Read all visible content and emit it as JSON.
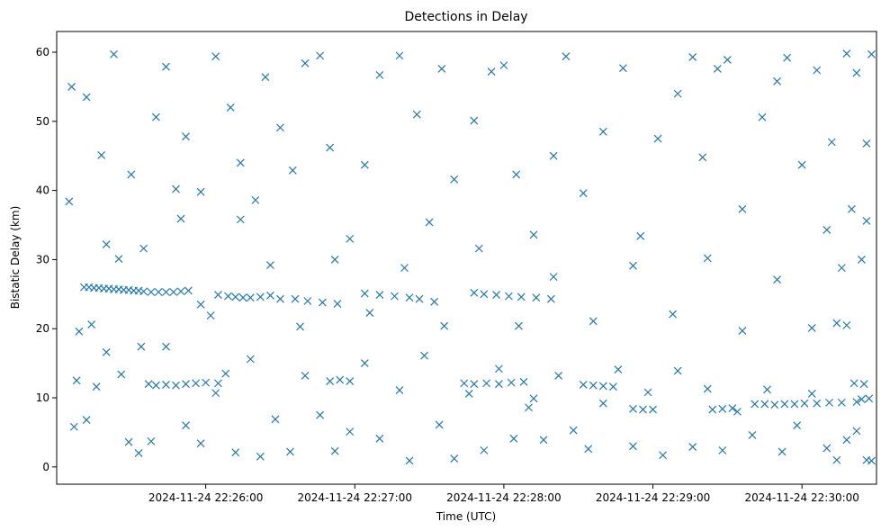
{
  "chart_data": {
    "type": "scatter",
    "title": "Detections in Delay",
    "xlabel": "Time (UTC)",
    "ylabel": "Bistatic Delay (km)",
    "x_ticks": [
      "2024-11-24 22:26:00",
      "2024-11-24 22:27:00",
      "2024-11-24 22:28:00",
      "2024-11-24 22:29:00",
      "2024-11-24 22:30:00"
    ],
    "xlim": [
      "2024-11-24 22:25:00",
      "2024-11-24 22:30:30"
    ],
    "ylim": [
      -2.5,
      63
    ],
    "y_ticks": [
      0,
      10,
      20,
      30,
      40,
      50,
      60
    ],
    "grid": false,
    "marker": "x",
    "color": "#1f77b4",
    "series": [
      {
        "points": [
          [
            "2024-11-24 22:25:11",
            26
          ],
          [
            "2024-11-24 22:25:13",
            26
          ],
          [
            "2024-11-24 22:25:15",
            25.9
          ],
          [
            "2024-11-24 22:25:17",
            25.9
          ],
          [
            "2024-11-24 22:25:19",
            25.8
          ],
          [
            "2024-11-24 22:25:21",
            25.8
          ],
          [
            "2024-11-24 22:25:23",
            25.7
          ],
          [
            "2024-11-24 22:25:25",
            25.7
          ],
          [
            "2024-11-24 22:25:27",
            25.6
          ],
          [
            "2024-11-24 22:25:29",
            25.6
          ],
          [
            "2024-11-24 22:25:31",
            25.5
          ],
          [
            "2024-11-24 22:25:33",
            25.5
          ],
          [
            "2024-11-24 22:25:35",
            25.4
          ],
          [
            "2024-11-24 22:25:38",
            25.3
          ],
          [
            "2024-11-24 22:25:41",
            25.3
          ],
          [
            "2024-11-24 22:25:44",
            25.3
          ],
          [
            "2024-11-24 22:25:47",
            25.3
          ],
          [
            "2024-11-24 22:25:50",
            25.4
          ],
          [
            "2024-11-24 22:25:53",
            25.5
          ],
          [
            "2024-11-24 22:25:58",
            23.5
          ],
          [
            "2024-11-24 22:26:05",
            24.9
          ],
          [
            "2024-11-24 22:26:09",
            24.7
          ],
          [
            "2024-11-24 22:26:12",
            24.6
          ],
          [
            "2024-11-24 22:26:15",
            24.5
          ],
          [
            "2024-11-24 22:26:18",
            24.5
          ],
          [
            "2024-11-24 22:26:22",
            24.6
          ],
          [
            "2024-11-24 22:26:26",
            24.8
          ],
          [
            "2024-11-24 22:26:30",
            24.3
          ],
          [
            "2024-11-24 22:26:36",
            24.3
          ],
          [
            "2024-11-24 22:26:41",
            24.0
          ],
          [
            "2024-11-24 22:26:47",
            23.8
          ],
          [
            "2024-11-24 22:26:53",
            23.6
          ],
          [
            "2024-11-24 22:27:04",
            25.1
          ],
          [
            "2024-11-24 22:27:10",
            24.9
          ],
          [
            "2024-11-24 22:27:16",
            24.7
          ],
          [
            "2024-11-24 22:27:22",
            24.5
          ],
          [
            "2024-11-24 22:27:26",
            24.3
          ],
          [
            "2024-11-24 22:27:32",
            23.9
          ],
          [
            "2024-11-24 22:27:48",
            25.2
          ],
          [
            "2024-11-24 22:27:52",
            25.0
          ],
          [
            "2024-11-24 22:27:57",
            24.9
          ],
          [
            "2024-11-24 22:28:02",
            24.7
          ],
          [
            "2024-11-24 22:28:07",
            24.6
          ],
          [
            "2024-11-24 22:28:13",
            24.5
          ],
          [
            "2024-11-24 22:28:19",
            24.3
          ],
          [
            "2024-11-24 22:25:37",
            12.0
          ],
          [
            "2024-11-24 22:25:40",
            11.8
          ],
          [
            "2024-11-24 22:25:44",
            11.9
          ],
          [
            "2024-11-24 22:25:48",
            11.8
          ],
          [
            "2024-11-24 22:25:52",
            12.0
          ],
          [
            "2024-11-24 22:25:56",
            12.1
          ],
          [
            "2024-11-24 22:26:00",
            12.2
          ],
          [
            "2024-11-24 22:26:05",
            12.1
          ],
          [
            "2024-11-24 22:26:50",
            12.4
          ],
          [
            "2024-11-24 22:26:54",
            12.6
          ],
          [
            "2024-11-24 22:26:58",
            12.4
          ],
          [
            "2024-11-24 22:27:44",
            12.1
          ],
          [
            "2024-11-24 22:27:48",
            12.0
          ],
          [
            "2024-11-24 22:27:53",
            12.1
          ],
          [
            "2024-11-24 22:27:58",
            12.0
          ],
          [
            "2024-11-24 22:28:03",
            12.2
          ],
          [
            "2024-11-24 22:28:08",
            12.3
          ],
          [
            "2024-11-24 22:28:12",
            9.9
          ],
          [
            "2024-11-24 22:28:32",
            11.9
          ],
          [
            "2024-11-24 22:28:36",
            11.8
          ],
          [
            "2024-11-24 22:28:40",
            11.7
          ],
          [
            "2024-11-24 22:28:44",
            11.6
          ],
          [
            "2024-11-24 22:28:52",
            8.4
          ],
          [
            "2024-11-24 22:28:56",
            8.3
          ],
          [
            "2024-11-24 22:29:00",
            8.3
          ],
          [
            "2024-11-24 22:29:24",
            8.3
          ],
          [
            "2024-11-24 22:29:28",
            8.4
          ],
          [
            "2024-11-24 22:29:32",
            8.5
          ],
          [
            "2024-11-24 22:29:41",
            9.1
          ],
          [
            "2024-11-24 22:29:45",
            9.1
          ],
          [
            "2024-11-24 22:29:49",
            9.0
          ],
          [
            "2024-11-24 22:29:53",
            9.1
          ],
          [
            "2024-11-24 22:29:57",
            9.1
          ],
          [
            "2024-11-24 22:30:01",
            9.2
          ],
          [
            "2024-11-24 22:30:06",
            9.2
          ],
          [
            "2024-11-24 22:30:11",
            9.3
          ],
          [
            "2024-11-24 22:30:16",
            9.3
          ],
          [
            "2024-11-24 22:30:22",
            9.4
          ],
          [
            "2024-11-24 22:30:24",
            9.8
          ],
          [
            "2024-11-24 22:30:27",
            9.9
          ],
          [
            "2024-11-24 22:30:21",
            12.1
          ],
          [
            "2024-11-24 22:30:25",
            12.0
          ],
          [
            "2024-11-24 22:30:14",
            20.8
          ],
          [
            "2024-11-24 22:30:18",
            20.5
          ],
          [
            "2024-11-24 22:25:05",
            38.4
          ],
          [
            "2024-11-24 22:25:08",
            12.5
          ],
          [
            "2024-11-24 22:25:06",
            55
          ],
          [
            "2024-11-24 22:25:12",
            53.5
          ],
          [
            "2024-11-24 22:25:18",
            45.1
          ],
          [
            "2024-11-24 22:25:20",
            32.2
          ],
          [
            "2024-11-24 22:25:23",
            59.7
          ],
          [
            "2024-11-24 22:25:25",
            30.1
          ],
          [
            "2024-11-24 22:25:30",
            42.3
          ],
          [
            "2024-11-24 22:25:35",
            31.6
          ],
          [
            "2024-11-24 22:25:40",
            50.6
          ],
          [
            "2024-11-24 22:25:44",
            57.9
          ],
          [
            "2024-11-24 22:25:48",
            40.2
          ],
          [
            "2024-11-24 22:25:52",
            47.8
          ],
          [
            "2024-11-24 22:25:58",
            39.8
          ],
          [
            "2024-11-24 22:26:04",
            59.4
          ],
          [
            "2024-11-24 22:26:10",
            52.0
          ],
          [
            "2024-11-24 22:26:14",
            44.0
          ],
          [
            "2024-11-24 22:26:20",
            38.6
          ],
          [
            "2024-11-24 22:26:24",
            56.4
          ],
          [
            "2024-11-24 22:26:30",
            49.1
          ],
          [
            "2024-11-24 22:26:35",
            42.9
          ],
          [
            "2024-11-24 22:26:40",
            58.4
          ],
          [
            "2024-11-24 22:26:46",
            59.5
          ],
          [
            "2024-11-24 22:26:50",
            46.2
          ],
          [
            "2024-11-24 22:26:58",
            33.0
          ],
          [
            "2024-11-24 22:27:04",
            43.7
          ],
          [
            "2024-11-24 22:27:10",
            56.7
          ],
          [
            "2024-11-24 22:27:18",
            59.5
          ],
          [
            "2024-11-24 22:27:25",
            51.0
          ],
          [
            "2024-11-24 22:27:30",
            35.4
          ],
          [
            "2024-11-24 22:27:35",
            57.6
          ],
          [
            "2024-11-24 22:27:40",
            41.6
          ],
          [
            "2024-11-24 22:27:48",
            50.1
          ],
          [
            "2024-11-24 22:27:55",
            57.2
          ],
          [
            "2024-11-24 22:28:00",
            58.1
          ],
          [
            "2024-11-24 22:28:05",
            42.3
          ],
          [
            "2024-11-24 22:28:12",
            33.6
          ],
          [
            "2024-11-24 22:28:20",
            45.0
          ],
          [
            "2024-11-24 22:28:25",
            59.4
          ],
          [
            "2024-11-24 22:28:32",
            39.6
          ],
          [
            "2024-11-24 22:28:40",
            48.5
          ],
          [
            "2024-11-24 22:28:48",
            57.7
          ],
          [
            "2024-11-24 22:28:55",
            33.4
          ],
          [
            "2024-11-24 22:29:02",
            47.5
          ],
          [
            "2024-11-24 22:29:10",
            54.0
          ],
          [
            "2024-11-24 22:29:16",
            59.3
          ],
          [
            "2024-11-24 22:29:20",
            44.8
          ],
          [
            "2024-11-24 22:29:26",
            57.6
          ],
          [
            "2024-11-24 22:29:30",
            58.9
          ],
          [
            "2024-11-24 22:29:36",
            37.3
          ],
          [
            "2024-11-24 22:29:44",
            50.6
          ],
          [
            "2024-11-24 22:29:50",
            55.8
          ],
          [
            "2024-11-24 22:29:54",
            59.2
          ],
          [
            "2024-11-24 22:30:00",
            43.7
          ],
          [
            "2024-11-24 22:30:06",
            57.4
          ],
          [
            "2024-11-24 22:30:12",
            47.0
          ],
          [
            "2024-11-24 22:30:18",
            59.8
          ],
          [
            "2024-11-24 22:30:22",
            57.0
          ],
          [
            "2024-11-24 22:30:26",
            46.8
          ],
          [
            "2024-11-24 22:30:28",
            59.7
          ],
          [
            "2024-11-24 22:30:24",
            30.0
          ],
          [
            "2024-11-24 22:30:20",
            37.3
          ],
          [
            "2024-11-24 22:30:10",
            34.3
          ],
          [
            "2024-11-24 22:25:07",
            5.8
          ],
          [
            "2024-11-24 22:25:12",
            6.8
          ],
          [
            "2024-11-24 22:25:16",
            11.6
          ],
          [
            "2024-11-24 22:25:20",
            16.6
          ],
          [
            "2024-11-24 22:25:29",
            3.6
          ],
          [
            "2024-11-24 22:25:33",
            2.0
          ],
          [
            "2024-11-24 22:25:38",
            3.7
          ],
          [
            "2024-11-24 22:25:44",
            17.4
          ],
          [
            "2024-11-24 22:25:52",
            6.0
          ],
          [
            "2024-11-24 22:25:58",
            3.4
          ],
          [
            "2024-11-24 22:26:04",
            10.7
          ],
          [
            "2024-11-24 22:26:08",
            13.5
          ],
          [
            "2024-11-24 22:26:12",
            2.1
          ],
          [
            "2024-11-24 22:26:18",
            15.6
          ],
          [
            "2024-11-24 22:26:22",
            1.5
          ],
          [
            "2024-11-24 22:26:28",
            6.9
          ],
          [
            "2024-11-24 22:26:34",
            2.2
          ],
          [
            "2024-11-24 22:26:40",
            13.2
          ],
          [
            "2024-11-24 22:26:46",
            7.5
          ],
          [
            "2024-11-24 22:26:52",
            2.3
          ],
          [
            "2024-11-24 22:26:58",
            5.1
          ],
          [
            "2024-11-24 22:27:04",
            15.0
          ],
          [
            "2024-11-24 22:27:10",
            4.1
          ],
          [
            "2024-11-24 22:27:18",
            11.1
          ],
          [
            "2024-11-24 22:27:22",
            0.9
          ],
          [
            "2024-11-24 22:27:28",
            16.1
          ],
          [
            "2024-11-24 22:27:34",
            6.1
          ],
          [
            "2024-11-24 22:27:40",
            1.2
          ],
          [
            "2024-11-24 22:27:46",
            10.6
          ],
          [
            "2024-11-24 22:27:52",
            2.4
          ],
          [
            "2024-11-24 22:27:58",
            14.2
          ],
          [
            "2024-11-24 22:28:04",
            4.1
          ],
          [
            "2024-11-24 22:28:10",
            8.6
          ],
          [
            "2024-11-24 22:28:16",
            3.9
          ],
          [
            "2024-11-24 22:28:22",
            13.2
          ],
          [
            "2024-11-24 22:28:28",
            5.3
          ],
          [
            "2024-11-24 22:28:34",
            2.6
          ],
          [
            "2024-11-24 22:28:40",
            9.2
          ],
          [
            "2024-11-24 22:28:46",
            14.1
          ],
          [
            "2024-11-24 22:28:52",
            3.0
          ],
          [
            "2024-11-24 22:28:58",
            10.8
          ],
          [
            "2024-11-24 22:29:04",
            1.7
          ],
          [
            "2024-11-24 22:29:10",
            13.9
          ],
          [
            "2024-11-24 22:29:16",
            2.9
          ],
          [
            "2024-11-24 22:29:22",
            11.3
          ],
          [
            "2024-11-24 22:29:28",
            2.4
          ],
          [
            "2024-11-24 22:29:34",
            8.0
          ],
          [
            "2024-11-24 22:29:40",
            4.6
          ],
          [
            "2024-11-24 22:29:46",
            11.2
          ],
          [
            "2024-11-24 22:29:52",
            2.2
          ],
          [
            "2024-11-24 22:29:58",
            6.0
          ],
          [
            "2024-11-24 22:30:04",
            10.6
          ],
          [
            "2024-11-24 22:30:10",
            2.7
          ],
          [
            "2024-11-24 22:30:14",
            1.0
          ],
          [
            "2024-11-24 22:30:18",
            3.9
          ],
          [
            "2024-11-24 22:30:22",
            5.2
          ],
          [
            "2024-11-24 22:30:26",
            1.0
          ],
          [
            "2024-11-24 22:30:28",
            0.9
          ],
          [
            "2024-11-24 22:25:09",
            19.6
          ],
          [
            "2024-11-24 22:25:14",
            20.6
          ],
          [
            "2024-11-24 22:25:26",
            13.4
          ],
          [
            "2024-11-24 22:25:34",
            17.4
          ],
          [
            "2024-11-24 22:25:50",
            35.9
          ],
          [
            "2024-11-24 22:26:02",
            21.9
          ],
          [
            "2024-11-24 22:26:14",
            35.8
          ],
          [
            "2024-11-24 22:26:26",
            29.2
          ],
          [
            "2024-11-24 22:26:38",
            20.3
          ],
          [
            "2024-11-24 22:26:52",
            30.0
          ],
          [
            "2024-11-24 22:27:06",
            22.3
          ],
          [
            "2024-11-24 22:27:20",
            28.8
          ],
          [
            "2024-11-24 22:27:36",
            20.4
          ],
          [
            "2024-11-24 22:27:50",
            31.6
          ],
          [
            "2024-11-24 22:28:06",
            20.4
          ],
          [
            "2024-11-24 22:28:20",
            27.5
          ],
          [
            "2024-11-24 22:28:36",
            21.1
          ],
          [
            "2024-11-24 22:28:52",
            29.1
          ],
          [
            "2024-11-24 22:29:08",
            22.1
          ],
          [
            "2024-11-24 22:29:22",
            30.2
          ],
          [
            "2024-11-24 22:29:36",
            19.7
          ],
          [
            "2024-11-24 22:29:50",
            27.1
          ],
          [
            "2024-11-24 22:30:04",
            20.1
          ],
          [
            "2024-11-24 22:30:16",
            28.8
          ],
          [
            "2024-11-24 22:30:26",
            35.6
          ]
        ]
      }
    ]
  }
}
